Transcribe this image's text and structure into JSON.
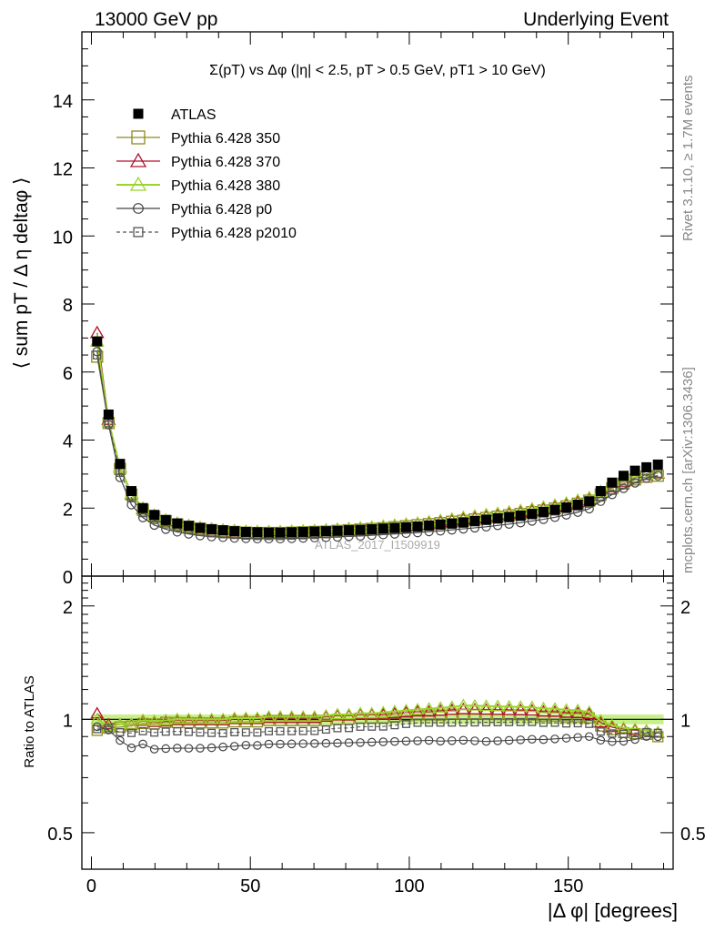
{
  "header": {
    "left": "13000 GeV pp",
    "right": "Underlying Event"
  },
  "side_labels": {
    "rivet": "Rivet 3.1.10, ≥ 1.7M events",
    "mcplots": "mcplots.cern.ch [arXiv:1306.3436]"
  },
  "watermark": "ATLAS_2017_I1509919",
  "chart_data": [
    {
      "type": "scatter",
      "title": "Σ(pT) vs Δφ (|η| < 2.5, pT > 0.5 GeV, pT1 > 10 GeV)",
      "xlabel": "|Δ φ| [degrees]",
      "ylabel": "⟨ sum pT / Δ η deltaφ ⟩",
      "xlim": [
        -3,
        183
      ],
      "ylim": [
        0,
        16
      ],
      "yticks": [
        0,
        2,
        4,
        6,
        8,
        10,
        12,
        14
      ],
      "legend_position": "top-left",
      "x": [
        1.8,
        5.4,
        9.0,
        12.6,
        16.2,
        19.8,
        23.4,
        27.0,
        30.6,
        34.2,
        37.8,
        41.4,
        45.0,
        48.6,
        52.2,
        55.8,
        59.4,
        63.0,
        66.6,
        70.2,
        73.8,
        77.4,
        81.0,
        84.6,
        88.2,
        91.8,
        95.4,
        99.0,
        102.6,
        106.2,
        109.8,
        113.4,
        117.0,
        120.6,
        124.2,
        127.8,
        131.4,
        135.0,
        138.6,
        142.2,
        145.8,
        149.4,
        153.0,
        156.6,
        160.2,
        163.8,
        167.4,
        171.0,
        174.6,
        178.2
      ],
      "series": [
        {
          "name": "ATLAS",
          "color": "#000000",
          "marker": "filled-square",
          "values": [
            6.9,
            4.75,
            3.3,
            2.5,
            2.0,
            1.8,
            1.65,
            1.55,
            1.48,
            1.42,
            1.38,
            1.35,
            1.32,
            1.3,
            1.29,
            1.28,
            1.28,
            1.29,
            1.3,
            1.31,
            1.32,
            1.33,
            1.35,
            1.36,
            1.38,
            1.4,
            1.42,
            1.44,
            1.46,
            1.49,
            1.52,
            1.55,
            1.58,
            1.62,
            1.66,
            1.7,
            1.74,
            1.78,
            1.83,
            1.89,
            1.95,
            2.02,
            2.1,
            2.2,
            2.5,
            2.75,
            2.95,
            3.1,
            3.2,
            3.28
          ]
        },
        {
          "name": "Pythia 6.428 350",
          "color": "#8c8c1e",
          "marker": "open-square",
          "values": [
            6.45,
            4.5,
            3.15,
            2.4,
            1.95,
            1.75,
            1.62,
            1.52,
            1.45,
            1.39,
            1.35,
            1.32,
            1.3,
            1.28,
            1.27,
            1.27,
            1.27,
            1.28,
            1.29,
            1.3,
            1.31,
            1.33,
            1.35,
            1.37,
            1.39,
            1.41,
            1.44,
            1.47,
            1.5,
            1.53,
            1.56,
            1.6,
            1.63,
            1.67,
            1.71,
            1.75,
            1.79,
            1.83,
            1.88,
            1.93,
            1.99,
            2.05,
            2.13,
            2.22,
            2.4,
            2.58,
            2.72,
            2.84,
            2.92,
            2.95
          ]
        },
        {
          "name": "Pythia 6.428 370",
          "color": "#b0102a",
          "marker": "open-triangle",
          "values": [
            7.15,
            4.6,
            3.2,
            2.42,
            1.98,
            1.77,
            1.63,
            1.54,
            1.47,
            1.41,
            1.37,
            1.34,
            1.32,
            1.3,
            1.29,
            1.29,
            1.29,
            1.3,
            1.31,
            1.32,
            1.34,
            1.36,
            1.38,
            1.4,
            1.42,
            1.44,
            1.47,
            1.5,
            1.53,
            1.56,
            1.6,
            1.64,
            1.68,
            1.72,
            1.76,
            1.8,
            1.84,
            1.88,
            1.93,
            1.98,
            2.04,
            2.1,
            2.18,
            2.27,
            2.45,
            2.62,
            2.78,
            2.9,
            2.98,
            3.02
          ]
        },
        {
          "name": "Pythia 6.428 380",
          "color": "#9bd42a",
          "marker": "open-triangle",
          "values": [
            6.9,
            4.55,
            3.2,
            2.43,
            1.99,
            1.78,
            1.64,
            1.55,
            1.48,
            1.42,
            1.38,
            1.35,
            1.33,
            1.31,
            1.3,
            1.3,
            1.3,
            1.31,
            1.32,
            1.33,
            1.35,
            1.37,
            1.39,
            1.41,
            1.43,
            1.46,
            1.49,
            1.52,
            1.55,
            1.59,
            1.63,
            1.67,
            1.72,
            1.76,
            1.8,
            1.84,
            1.88,
            1.92,
            1.97,
            2.02,
            2.08,
            2.14,
            2.22,
            2.3,
            2.48,
            2.65,
            2.8,
            2.92,
            2.99,
            3.03
          ]
        },
        {
          "name": "Pythia 6.428 p0",
          "color": "#444444",
          "marker": "open-circle",
          "values": [
            6.6,
            4.45,
            2.9,
            2.1,
            1.72,
            1.5,
            1.38,
            1.3,
            1.24,
            1.19,
            1.16,
            1.14,
            1.12,
            1.11,
            1.1,
            1.1,
            1.1,
            1.11,
            1.12,
            1.13,
            1.14,
            1.15,
            1.17,
            1.18,
            1.2,
            1.22,
            1.24,
            1.26,
            1.28,
            1.31,
            1.33,
            1.36,
            1.39,
            1.42,
            1.45,
            1.49,
            1.53,
            1.57,
            1.62,
            1.67,
            1.73,
            1.8,
            1.88,
            1.98,
            2.2,
            2.4,
            2.58,
            2.74,
            2.88,
            2.95
          ]
        },
        {
          "name": "Pythia 6.428 p2010",
          "color": "#555555",
          "marker": "open-square-dashed",
          "values": [
            6.5,
            4.5,
            3.05,
            2.3,
            1.86,
            1.66,
            1.53,
            1.44,
            1.37,
            1.31,
            1.27,
            1.24,
            1.22,
            1.2,
            1.19,
            1.19,
            1.19,
            1.2,
            1.21,
            1.22,
            1.24,
            1.26,
            1.28,
            1.3,
            1.32,
            1.34,
            1.37,
            1.4,
            1.43,
            1.46,
            1.49,
            1.52,
            1.55,
            1.59,
            1.63,
            1.67,
            1.71,
            1.75,
            1.8,
            1.85,
            1.91,
            1.97,
            2.05,
            2.14,
            2.32,
            2.52,
            2.7,
            2.85,
            2.96,
            3.02
          ]
        }
      ]
    },
    {
      "type": "scatter",
      "ylabel": "Ratio to ATLAS",
      "xlabel": "|Δ φ| [degrees]",
      "xlim": [
        -3,
        183
      ],
      "ylim": [
        0.4,
        2.4
      ],
      "xticks": [
        0,
        50,
        100,
        150
      ],
      "yticks": [
        0.5,
        1,
        2
      ],
      "band": {
        "lower": 0.97,
        "upper": 1.03,
        "color": "#c8f08a"
      },
      "reference": 1.0
    }
  ]
}
